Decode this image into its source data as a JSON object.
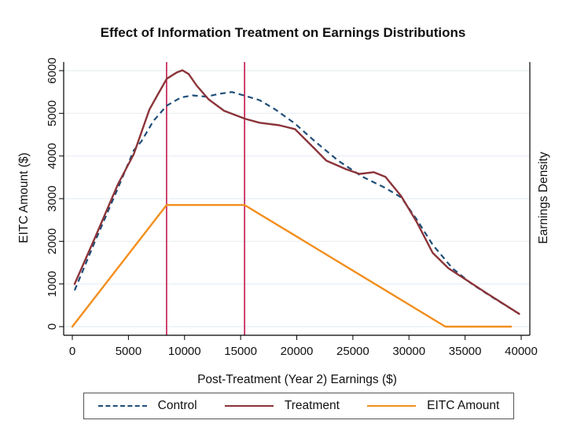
{
  "chart_data": {
    "type": "line",
    "title": "Effect of Information Treatment on Earnings Distributions",
    "xlabel": "Post-Treatment (Year 2) Earnings ($)",
    "ylabel": "EITC Amount ($)",
    "ylabel_right": "Earnings Density",
    "xlim": [
      0,
      40000
    ],
    "ylim": [
      0,
      6000
    ],
    "x_ticks": [
      0,
      5000,
      10000,
      15000,
      20000,
      25000,
      30000,
      35000,
      40000
    ],
    "y_ticks": [
      0,
      1000,
      2000,
      3000,
      4000,
      5000,
      6000
    ],
    "grid": true,
    "legend_position": "bottom",
    "reference_lines_x": [
      8400,
      15350
    ],
    "series": [
      {
        "name": "Control",
        "style": "dashed",
        "color": "#1f4e79",
        "x": [
          200,
          1960,
          4070,
          5470,
          6170,
          7220,
          8410,
          9670,
          10720,
          11920,
          13180,
          14230,
          15420,
          16680,
          18090,
          19840,
          21590,
          23690,
          25800,
          27900,
          29300,
          30700,
          32110,
          33860,
          35610,
          37360,
          39820
        ],
        "y": [
          850,
          1960,
          3250,
          4130,
          4350,
          4820,
          5180,
          5370,
          5420,
          5390,
          5460,
          5500,
          5410,
          5310,
          5090,
          4760,
          4350,
          3890,
          3520,
          3250,
          3030,
          2510,
          1920,
          1370,
          1000,
          700,
          300
        ]
      },
      {
        "name": "Treatment",
        "style": "solid",
        "color": "#8b3439",
        "x": [
          200,
          1960,
          4070,
          5470,
          6870,
          7570,
          8410,
          9320,
          9810,
          10370,
          11080,
          12130,
          13530,
          15420,
          16680,
          18440,
          19840,
          21590,
          22640,
          24390,
          25590,
          26850,
          27900,
          29300,
          30700,
          32110,
          33510,
          35260,
          37010,
          39820
        ],
        "y": [
          1000,
          2050,
          3340,
          4040,
          5090,
          5420,
          5810,
          5960,
          6010,
          5920,
          5650,
          5330,
          5060,
          4870,
          4780,
          4720,
          4630,
          4170,
          3890,
          3690,
          3580,
          3620,
          3510,
          3060,
          2450,
          1730,
          1370,
          1070,
          770,
          300
        ]
      },
      {
        "name": "EITC Amount",
        "style": "solid",
        "color": "#f28e1c",
        "x": [
          0,
          8400,
          15350,
          33250,
          39100
        ],
        "y": [
          0,
          2850,
          2850,
          0,
          0
        ]
      }
    ]
  }
}
